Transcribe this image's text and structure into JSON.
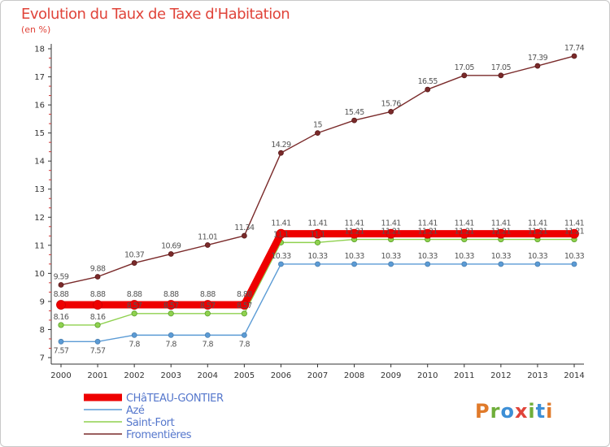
{
  "title": "Evolution du Taux de Taxe d'Habitation",
  "subtitle": "(en %)",
  "logo": "Proxiti",
  "chart_data": {
    "type": "line",
    "title": "Evolution du Taux de Taxe d'Habitation",
    "ylabel": "(en %)",
    "xlabel": "",
    "ylim": [
      7,
      18
    ],
    "yticks": [
      7,
      8,
      9,
      10,
      11,
      12,
      13,
      14,
      15,
      16,
      17,
      18
    ],
    "x": [
      "2000",
      "2001",
      "2002",
      "2003",
      "2004",
      "2005",
      "2006",
      "2007",
      "2008",
      "2009",
      "2010",
      "2011",
      "2012",
      "2013",
      "2014"
    ],
    "series": [
      {
        "name": "CHâTEAU-GONTIER",
        "color": "#ee0000",
        "values": [
          8.88,
          8.88,
          8.88,
          8.88,
          8.88,
          8.88,
          11.41,
          11.41,
          11.41,
          11.41,
          11.41,
          11.41,
          11.41,
          11.41,
          11.41
        ],
        "labels": [
          "8.88",
          "8.88",
          "8.88",
          "8.88",
          "8.88",
          "8.88",
          "11.41",
          "11.41",
          "11.41",
          "11.41",
          "11.41",
          "11.41",
          "11.41",
          "11.41",
          "11.41"
        ]
      },
      {
        "name": "Azé",
        "color": "#5b9bd5",
        "values": [
          7.57,
          7.57,
          7.8,
          7.8,
          7.8,
          7.8,
          10.33,
          10.33,
          10.33,
          10.33,
          10.33,
          10.33,
          10.33,
          10.33,
          10.33
        ],
        "labels": [
          "7.57",
          "7.57",
          "7.8",
          "7.8",
          "7.8",
          "7.8",
          "10.33",
          "10.33",
          "10.33",
          "10.33",
          "10.33",
          "10.33",
          "10.33",
          "10.33",
          "10.33"
        ]
      },
      {
        "name": "Saint-Fort",
        "color": "#8fd14f",
        "values": [
          8.16,
          8.16,
          8.57,
          8.57,
          8.57,
          8.57,
          11.1,
          11.1,
          11.21,
          11.21,
          11.21,
          11.21,
          11.21,
          11.21,
          11.21
        ],
        "labels": [
          "8.16",
          "8.16",
          "8.57",
          "8.57",
          "8.57",
          "8.57",
          "11.1",
          "11.1",
          "11.21",
          "11.21",
          "11.21",
          "11.21",
          "11.21",
          "11.21",
          "11.21"
        ]
      },
      {
        "name": "Fromentières",
        "color": "#7a2a2a",
        "values": [
          9.59,
          9.88,
          10.37,
          10.69,
          11.01,
          11.34,
          14.29,
          15,
          15.45,
          15.76,
          16.55,
          17.05,
          17.05,
          17.39,
          17.74
        ],
        "labels": [
          "9.59",
          "9.88",
          "10.37",
          "10.69",
          "11.01",
          "11.34",
          "14.29",
          "15",
          "15.45",
          "15.76",
          "16.55",
          "17.05",
          "17.05",
          "17.39",
          "17.74"
        ]
      }
    ],
    "legend": "bottom-left"
  }
}
